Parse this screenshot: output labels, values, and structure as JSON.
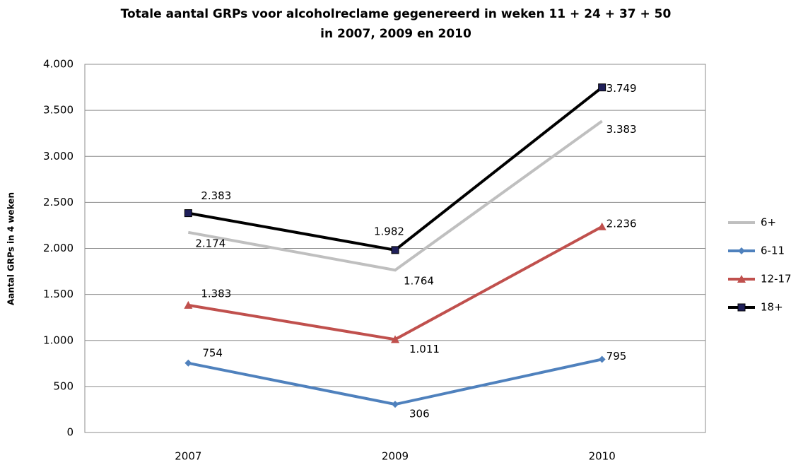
{
  "chart_data": {
    "type": "line",
    "title": [
      "Totale aantal GRPs voor alcoholreclame gegenereerd in weken  11 + 24 + 37 + 50",
      "in 2007,  2009  en 2010"
    ],
    "y_label": "Aantal GRPs in 4 weken",
    "categories": [
      "2007",
      "2009",
      "2010"
    ],
    "series": [
      {
        "name": "6+",
        "color": "#bfbfbf",
        "marker": "none",
        "values": [
          2174,
          1764,
          3383
        ],
        "value_labels": [
          "2.174",
          "1.764",
          "3.383"
        ]
      },
      {
        "name": "6-11",
        "color": "#4f81bd",
        "marker": "diamond",
        "values": [
          754,
          306,
          795
        ],
        "value_labels": [
          "754",
          "306",
          "795"
        ]
      },
      {
        "name": "12-17",
        "color": "#c0504d",
        "marker": "triangle",
        "values": [
          1383,
          1011,
          2236
        ],
        "value_labels": [
          "1.383",
          "1.011",
          "2.236"
        ]
      },
      {
        "name": "18+",
        "color": "#000000",
        "marker": "square",
        "values": [
          2383,
          1982,
          3749
        ],
        "value_labels": [
          "2.383",
          "1.982",
          "3.749"
        ]
      }
    ],
    "ylim": [
      0,
      4000
    ],
    "yticks": [
      {
        "value": 0,
        "label": "0"
      },
      {
        "value": 500,
        "label": "500"
      },
      {
        "value": 1000,
        "label": "1.000"
      },
      {
        "value": 1500,
        "label": "1.500"
      },
      {
        "value": 2000,
        "label": "2.000"
      },
      {
        "value": 2500,
        "label": "2.500"
      },
      {
        "value": 3000,
        "label": "3.000"
      },
      {
        "value": 3500,
        "label": "3.500"
      },
      {
        "value": 4000,
        "label": "4.000"
      }
    ],
    "grid": true,
    "legend": "right"
  }
}
